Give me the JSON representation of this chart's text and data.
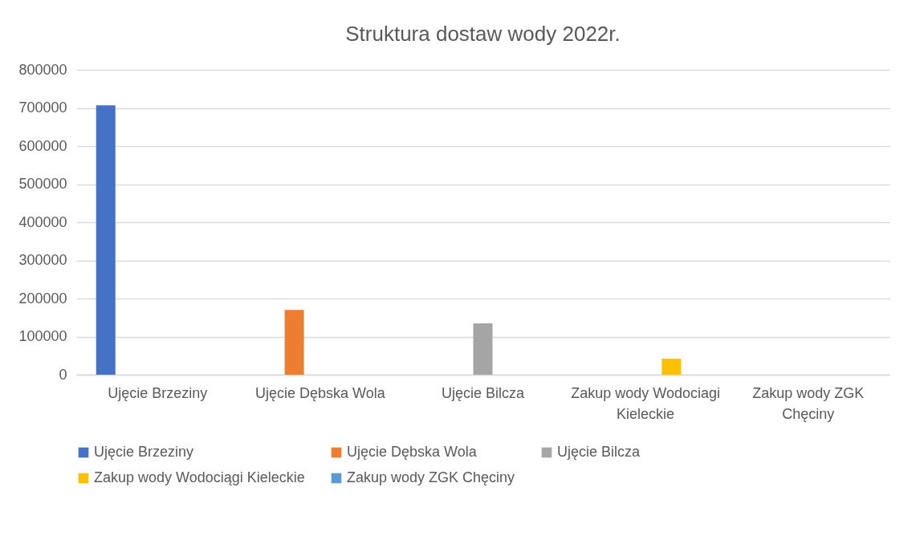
{
  "chart_data": {
    "type": "bar",
    "title": "Struktura dostaw wody 2022r.",
    "categories": [
      "Ujęcie Brzeziny",
      "Ujęcie Dębska Wola",
      "Ujęcie Bilcza",
      "Zakup wody Wodociagi Kieleckie",
      "Zakup wody ZGK Chęciny"
    ],
    "series": [
      {
        "name": "Ujęcie Brzeziny",
        "color": "#4472c4",
        "values": [
          707000,
          null,
          null,
          null,
          null
        ]
      },
      {
        "name": "Ujęcie Dębska Wola",
        "color": "#ed7d31",
        "values": [
          null,
          170000,
          null,
          null,
          null
        ]
      },
      {
        "name": "Ujęcie Bilcza",
        "color": "#a5a5a5",
        "values": [
          null,
          null,
          135000,
          null,
          null
        ]
      },
      {
        "name": "Zakup wody Wodociągi Kieleckie",
        "color": "#ffc000",
        "values": [
          null,
          null,
          null,
          42000,
          null
        ]
      },
      {
        "name": "Zakup wody ZGK Chęciny",
        "color": "#5b9bd5",
        "values": [
          null,
          null,
          null,
          null,
          0
        ]
      }
    ],
    "ylim": [
      0,
      800000
    ],
    "yticks": [
      0,
      100000,
      200000,
      300000,
      400000,
      500000,
      600000,
      700000,
      800000
    ],
    "grid": "y",
    "legend": "bottom"
  }
}
